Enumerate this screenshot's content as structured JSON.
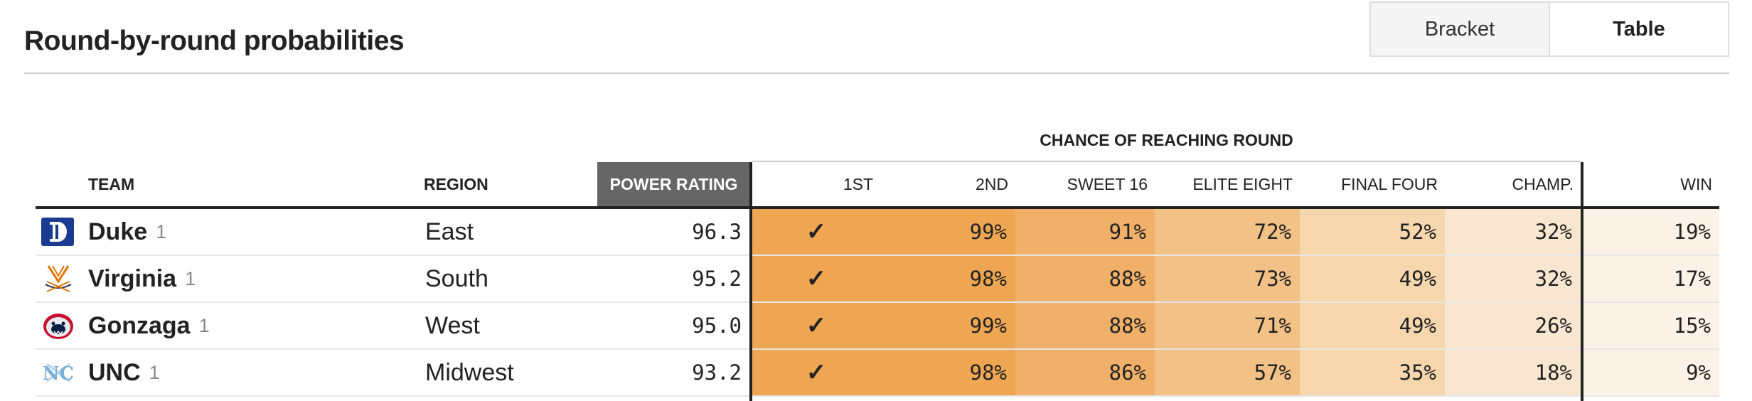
{
  "page": {
    "title": "Round-by-round probabilities",
    "view_toggle": {
      "bracket_label": "Bracket",
      "table_label": "Table",
      "active": "Table"
    }
  },
  "table": {
    "group_header": "CHANCE OF REACHING ROUND",
    "columns": {
      "team": "TEAM",
      "region": "REGION",
      "power": "POWER RATING",
      "r1": "1ST",
      "r2": "2ND",
      "s16": "SWEET 16",
      "e8": "ELITE EIGHT",
      "f4": "FINAL FOUR",
      "champ": "CHAMP.",
      "win": "WIN"
    },
    "column_colors": [
      "#efa653",
      "#efa653",
      "#f0b06a",
      "#f2c186",
      "#f6d6ac",
      "#f9e6d0",
      "#fdf2e8"
    ],
    "rows": [
      {
        "logo": "duke-logo",
        "team": "Duke",
        "seed": "1",
        "region": "East",
        "power": "96.3",
        "r1": "✓",
        "r2": "99%",
        "s16": "91%",
        "e8": "72%",
        "f4": "52%",
        "champ": "32%",
        "win": "19%"
      },
      {
        "logo": "virginia-logo",
        "team": "Virginia",
        "seed": "1",
        "region": "South",
        "power": "95.2",
        "r1": "✓",
        "r2": "98%",
        "s16": "88%",
        "e8": "73%",
        "f4": "49%",
        "champ": "32%",
        "win": "17%"
      },
      {
        "logo": "gonzaga-logo",
        "team": "Gonzaga",
        "seed": "1",
        "region": "West",
        "power": "95.0",
        "r1": "✓",
        "r2": "99%",
        "s16": "88%",
        "e8": "71%",
        "f4": "49%",
        "champ": "26%",
        "win": "15%"
      },
      {
        "logo": "unc-logo",
        "team": "UNC",
        "seed": "1",
        "region": "Midwest",
        "power": "93.2",
        "r1": "✓",
        "r2": "98%",
        "s16": "86%",
        "e8": "57%",
        "f4": "35%",
        "champ": "18%",
        "win": "9%"
      }
    ]
  }
}
